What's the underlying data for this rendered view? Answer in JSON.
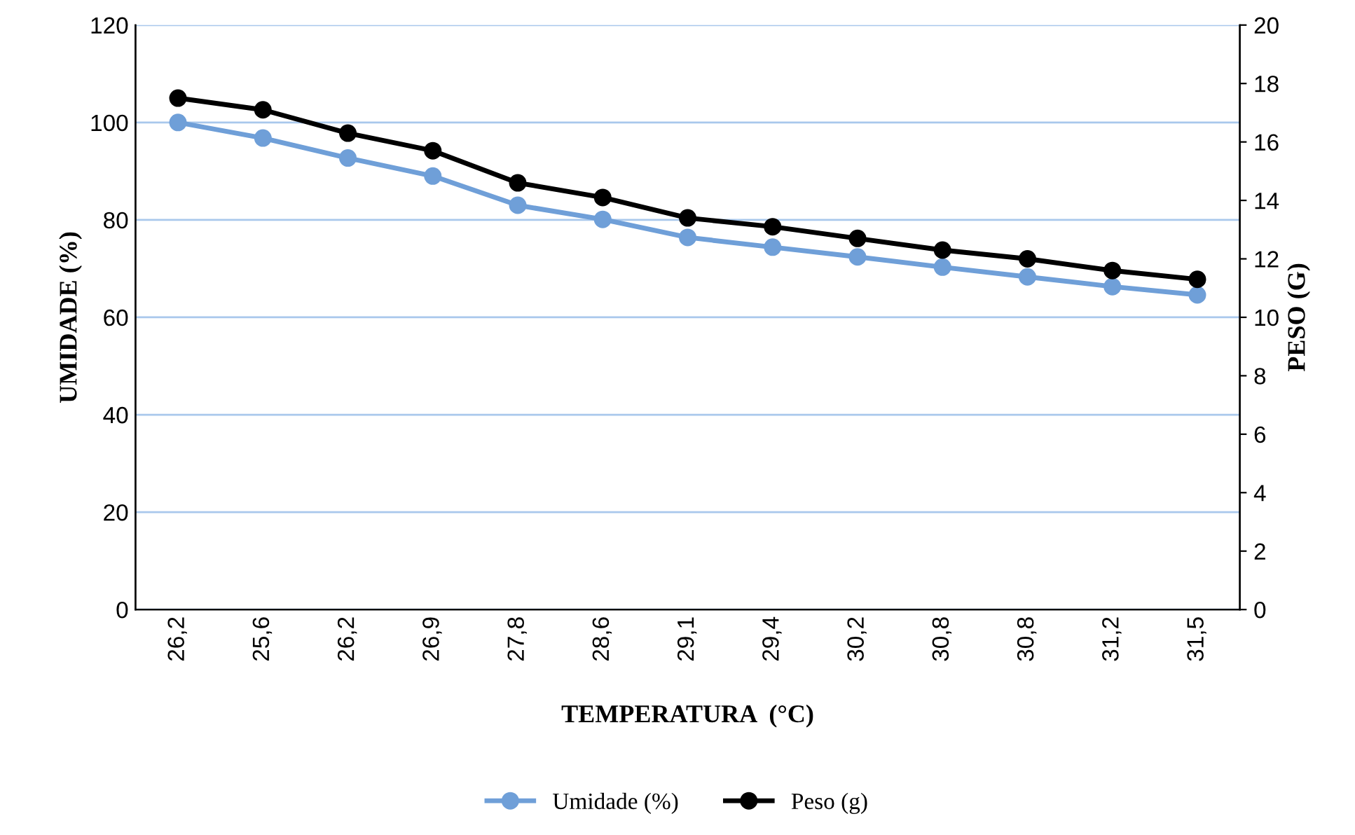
{
  "chart_data": {
    "type": "line",
    "xlabel": "TEMPERATURA  (°C)",
    "ylabel": "UMIDADE (%)",
    "y2label": "PESO (G)",
    "categories": [
      "26,2",
      "25,6",
      "26,2",
      "26,9",
      "27,8",
      "28,6",
      "29,1",
      "29,4",
      "30,2",
      "30,8",
      "30,8",
      "31,2",
      "31,5"
    ],
    "series": [
      {
        "name": "Umidade (%)",
        "color": "#6f9fd8",
        "values": [
          100,
          96.8,
          92.7,
          89.0,
          83.0,
          80.1,
          76.4,
          74.4,
          72.4,
          70.3,
          68.3,
          66.3,
          64.6
        ]
      },
      {
        "name": "Peso (g)",
        "color": "#000000",
        "axis": "y2",
        "values": [
          17.5,
          17.1,
          16.3,
          15.7,
          14.6,
          14.1,
          13.4,
          13.1,
          12.7,
          12.3,
          12.0,
          11.6,
          11.3
        ]
      }
    ],
    "ylim": [
      0,
      120
    ],
    "yticks": [
      0,
      20,
      40,
      60,
      80,
      100,
      120
    ],
    "y2lim": [
      0,
      20
    ],
    "y2ticks": [
      0,
      2,
      4,
      6,
      8,
      10,
      12,
      14,
      16,
      18,
      20
    ],
    "grid": "y",
    "legend": "bottom",
    "marker": "circle",
    "line_style": "solid"
  }
}
